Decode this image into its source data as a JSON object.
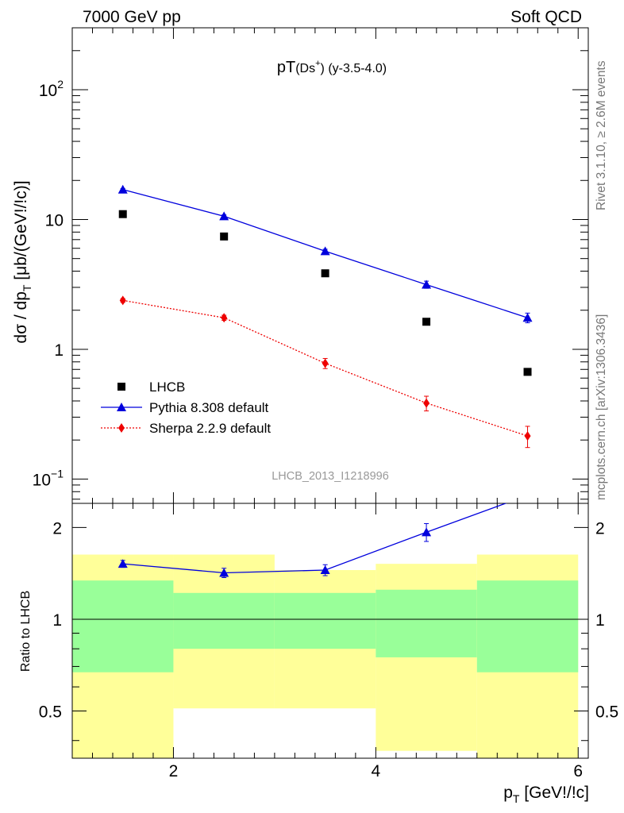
{
  "header": {
    "left": "7000 GeV pp",
    "right": "Soft QCD"
  },
  "side_labels": {
    "rivet": "Rivet 3.1.10, ≥ 2.6M events",
    "mcplots": "mcplots.cern.ch [arXiv:1306.3436]"
  },
  "chart_data": [
    {
      "type": "scatter",
      "title_main": "pT",
      "title_particle": "(Ds",
      "title_sup": "+",
      "title_close": ")",
      "title_range": " (y-3.5-4.0)",
      "ylabel_main": "dσ / dp",
      "ylabel_sub": "T",
      "ylabel_tail": " [μb/(GeV!/!c)]",
      "yscale": "log",
      "ylim": [
        0.065,
        300
      ],
      "xlim": [
        1,
        6.1
      ],
      "y_ticks": [
        {
          "value": 100,
          "base": "10",
          "exp": "2"
        },
        {
          "value": 10,
          "base": "10",
          "exp": ""
        },
        {
          "value": 1,
          "base": "1",
          "exp": ""
        },
        {
          "value": 0.1,
          "base": "10",
          "exp": "−1"
        }
      ],
      "watermark": "LHCB_2013_I1218996",
      "legend_position": "bottom-left",
      "series": [
        {
          "name": "LHCB",
          "marker": "square",
          "color": "#000000",
          "x": [
            1.5,
            2.5,
            3.5,
            4.5,
            5.5
          ],
          "y": [
            11.0,
            7.4,
            3.85,
            1.63,
            0.67
          ],
          "err": [
            0.3,
            0.2,
            0.12,
            0.05,
            0.02
          ]
        },
        {
          "name": "Pythia 8.308 default",
          "marker": "triangle",
          "line": "solid",
          "color": "#0000dd",
          "x": [
            1.5,
            2.5,
            3.5,
            4.5,
            5.5
          ],
          "y": [
            17.0,
            10.6,
            5.7,
            3.15,
            1.75
          ],
          "err": [
            0.3,
            0.25,
            0.2,
            0.2,
            0.15
          ]
        },
        {
          "name": "Sherpa 2.2.9 default",
          "marker": "diamond",
          "line": "dotted",
          "color": "#ee0000",
          "x": [
            1.5,
            2.5,
            3.5,
            4.5,
            5.5
          ],
          "y": [
            2.38,
            1.75,
            0.78,
            0.385,
            0.215
          ],
          "err": [
            0.08,
            0.08,
            0.07,
            0.05,
            0.04
          ]
        }
      ]
    },
    {
      "type": "line",
      "ylabel": "Ratio to LHCB",
      "xlabel_main": "p",
      "xlabel_sub": "T",
      "xlabel_tail": " [GeV!/!c]",
      "yscale": "log",
      "ylim": [
        0.35,
        2.4
      ],
      "xlim": [
        1,
        6.1
      ],
      "x_ticks": [
        "2",
        "4",
        "6"
      ],
      "y_ticks": [
        "0.5",
        "1",
        "2"
      ],
      "bins": [
        {
          "x0": 1,
          "x1": 2,
          "green": [
            0.67,
            1.34
          ],
          "yellow": [
            0.35,
            1.63
          ]
        },
        {
          "x0": 2,
          "x1": 3,
          "green": [
            0.8,
            1.22
          ],
          "yellow": [
            0.51,
            1.63
          ]
        },
        {
          "x0": 3,
          "x1": 4,
          "green": [
            0.8,
            1.22
          ],
          "yellow": [
            0.51,
            1.45
          ]
        },
        {
          "x0": 4,
          "x1": 5,
          "green": [
            0.75,
            1.25
          ],
          "yellow": [
            0.37,
            1.52
          ]
        },
        {
          "x0": 5,
          "x1": 6,
          "green": [
            0.67,
            1.34
          ],
          "yellow": [
            0.35,
            1.63
          ]
        }
      ],
      "series": [
        {
          "name": "Pythia 8.308 default",
          "color": "#0000dd",
          "x": [
            1.5,
            2.5,
            3.5,
            4.5,
            5.5
          ],
          "y": [
            1.52,
            1.42,
            1.45,
            1.93,
            2.55
          ],
          "err": [
            0.04,
            0.05,
            0.06,
            0.13,
            0.15
          ]
        }
      ]
    }
  ]
}
